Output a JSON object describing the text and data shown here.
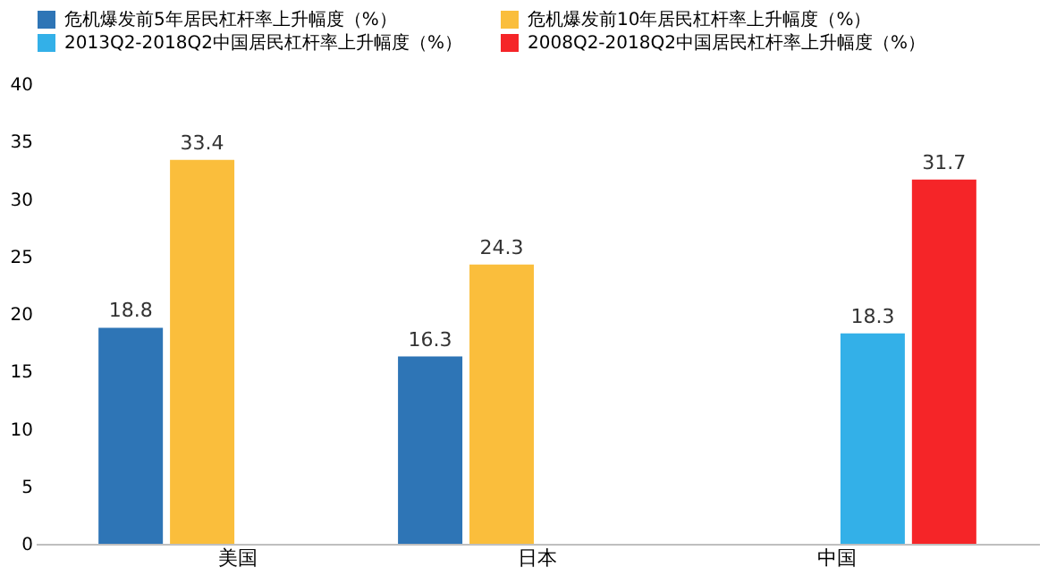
{
  "chart_data": {
    "type": "bar",
    "categories": [
      "美国",
      "日本",
      "中国"
    ],
    "series": [
      {
        "name": "危机爆发前5年居民杠杆率上升幅度（%）",
        "color": "#2e75b6",
        "values": [
          18.8,
          16.3,
          null
        ]
      },
      {
        "name": "危机爆发前10年居民杠杆率上升幅度（%）",
        "color": "#fabe3c",
        "values": [
          33.4,
          24.3,
          null
        ]
      },
      {
        "name": "2013Q2-2018Q2中国居民杠杆率上升幅度（%）",
        "color": "#33b0e8",
        "values": [
          null,
          null,
          18.3
        ]
      },
      {
        "name": "2008Q2-2018Q2中国居民杠杆率上升幅度（%）",
        "color": "#f52528",
        "values": [
          null,
          null,
          31.7
        ]
      }
    ],
    "ylim": [
      0,
      40
    ],
    "yticks": [
      0,
      5,
      10,
      15,
      20,
      25,
      30,
      35,
      40
    ],
    "grid": false,
    "legend": "top",
    "data_labels": true
  }
}
